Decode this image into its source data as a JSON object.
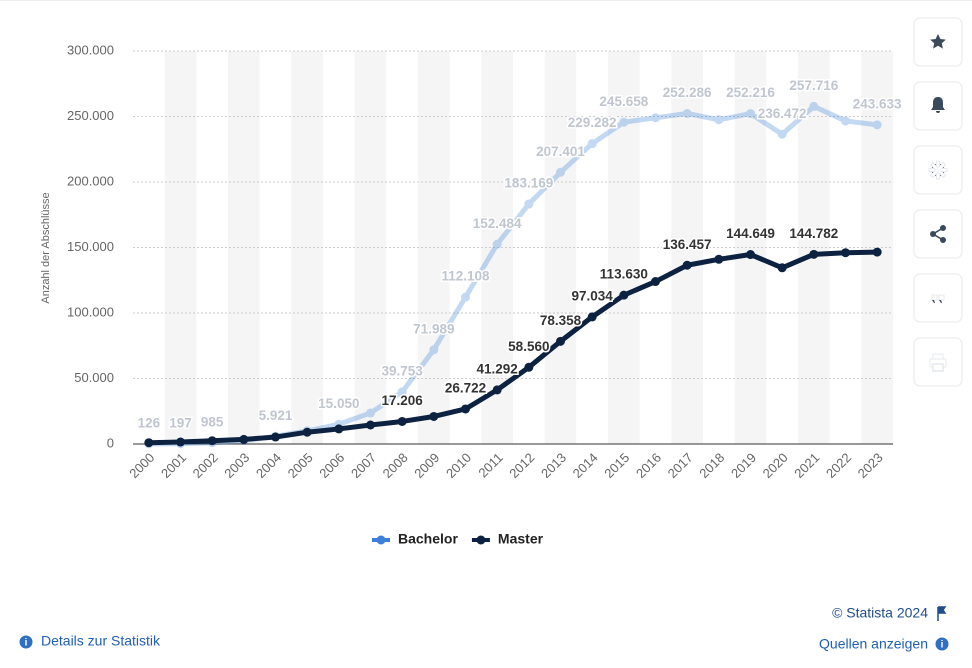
{
  "chart_data": {
    "type": "line",
    "y_label": "Anzahl der Abschlüsse",
    "categories": [
      "2000",
      "2001",
      "2002",
      "2003",
      "2004",
      "2005",
      "2006",
      "2007",
      "2008",
      "2009",
      "2010",
      "2011",
      "2012",
      "2013",
      "2014",
      "2015",
      "2016",
      "2017",
      "2018",
      "2019",
      "2020",
      "2021",
      "2022",
      "2023"
    ],
    "series": [
      {
        "name": "Bachelor",
        "color": "#3c80d9",
        "values": [
          126,
          197,
          985,
          2500,
          5921,
          10000,
          15050,
          23700,
          39753,
          71989,
          112108,
          152484,
          183169,
          207401,
          229282,
          245658,
          249000,
          252286,
          247500,
          252216,
          236472,
          257716,
          246600,
          243633
        ],
        "value_labels": [
          "126",
          "197",
          "985",
          null,
          "5.921",
          null,
          "15.050",
          null,
          "39.753",
          "71.989",
          "112.108",
          "152.484",
          "183.169",
          "207.401",
          "229.282",
          "245.658",
          null,
          "252.286",
          null,
          "252.216",
          "236.472",
          "257.716",
          null,
          "243.633"
        ]
      },
      {
        "name": "Master",
        "color": "#0d2240",
        "values": [
          1000,
          1500,
          2500,
          3500,
          5300,
          9000,
          11500,
          14500,
          17206,
          21000,
          26722,
          41292,
          58560,
          78358,
          97034,
          113630,
          124000,
          136457,
          141000,
          144649,
          134500,
          144782,
          146000,
          146500
        ],
        "value_labels": [
          null,
          null,
          null,
          null,
          null,
          null,
          null,
          null,
          "17.206",
          null,
          "26.722",
          "41.292",
          "58.560",
          "78.358",
          "97.034",
          "113.630",
          null,
          "136.457",
          null,
          "144.649",
          null,
          "144.782",
          null,
          null
        ]
      }
    ],
    "ylim": [
      0,
      300000
    ],
    "yticks": [
      {
        "value": 0,
        "label": "0"
      },
      {
        "value": 50000,
        "label": "50.000"
      },
      {
        "value": 100000,
        "label": "100.000"
      },
      {
        "value": 150000,
        "label": "150.000"
      },
      {
        "value": 200000,
        "label": "200.000"
      },
      {
        "value": 250000,
        "label": "250.000"
      },
      {
        "value": 300000,
        "label": "300.000"
      }
    ],
    "grid": true,
    "legend": "bottom"
  },
  "footer": {
    "copyright": "© Statista 2024",
    "details": "Details zur Statistik",
    "sources": "Quellen anzeigen"
  }
}
